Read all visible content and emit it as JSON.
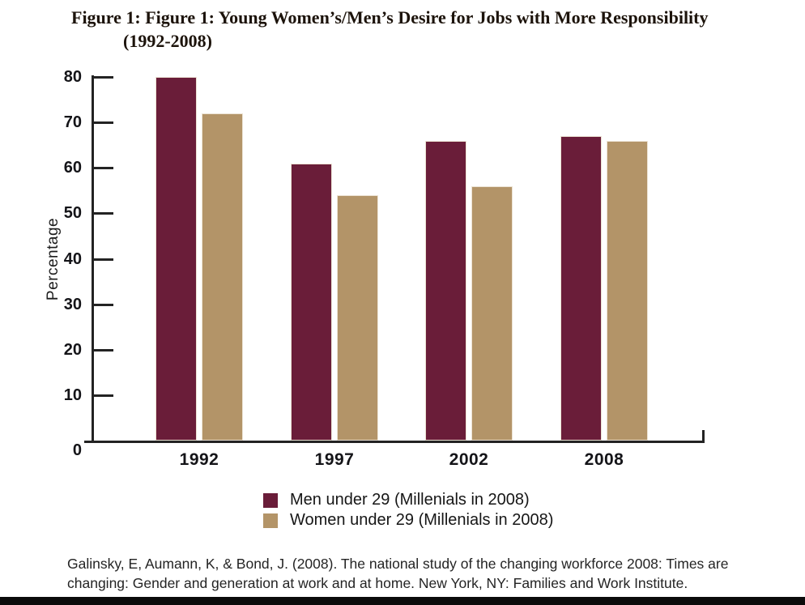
{
  "title": {
    "line1": "Figure 1: Figure 1: Young Women’s/Men’s Desire for Jobs with More Responsibility",
    "line2": "(1992-2008)"
  },
  "chart_data": {
    "type": "bar",
    "categories": [
      "1992",
      "1997",
      "2002",
      "2008"
    ],
    "series": [
      {
        "name": "Men under 29 (Millenials in 2008)",
        "color": "#6a1d39",
        "values": [
          80,
          61,
          66,
          67
        ]
      },
      {
        "name": "Women under 29 (Millenials in 2008)",
        "color": "#b39468",
        "values": [
          72,
          54,
          56,
          66
        ]
      }
    ],
    "xlabel": "",
    "ylabel": "Percentage",
    "ylim": [
      0,
      80
    ],
    "yticks": [
      0,
      10,
      20,
      30,
      40,
      50,
      60,
      70,
      80
    ],
    "grid": false,
    "legend_position": "bottom"
  },
  "source": {
    "line1": "Galinsky, E, Aumann, K, & Bond, J. (2008). The national study of the changing workforce 2008: Times are",
    "line2": "changing: Gender and generation at work and at home. New York, NY: Families and Work Institute."
  }
}
